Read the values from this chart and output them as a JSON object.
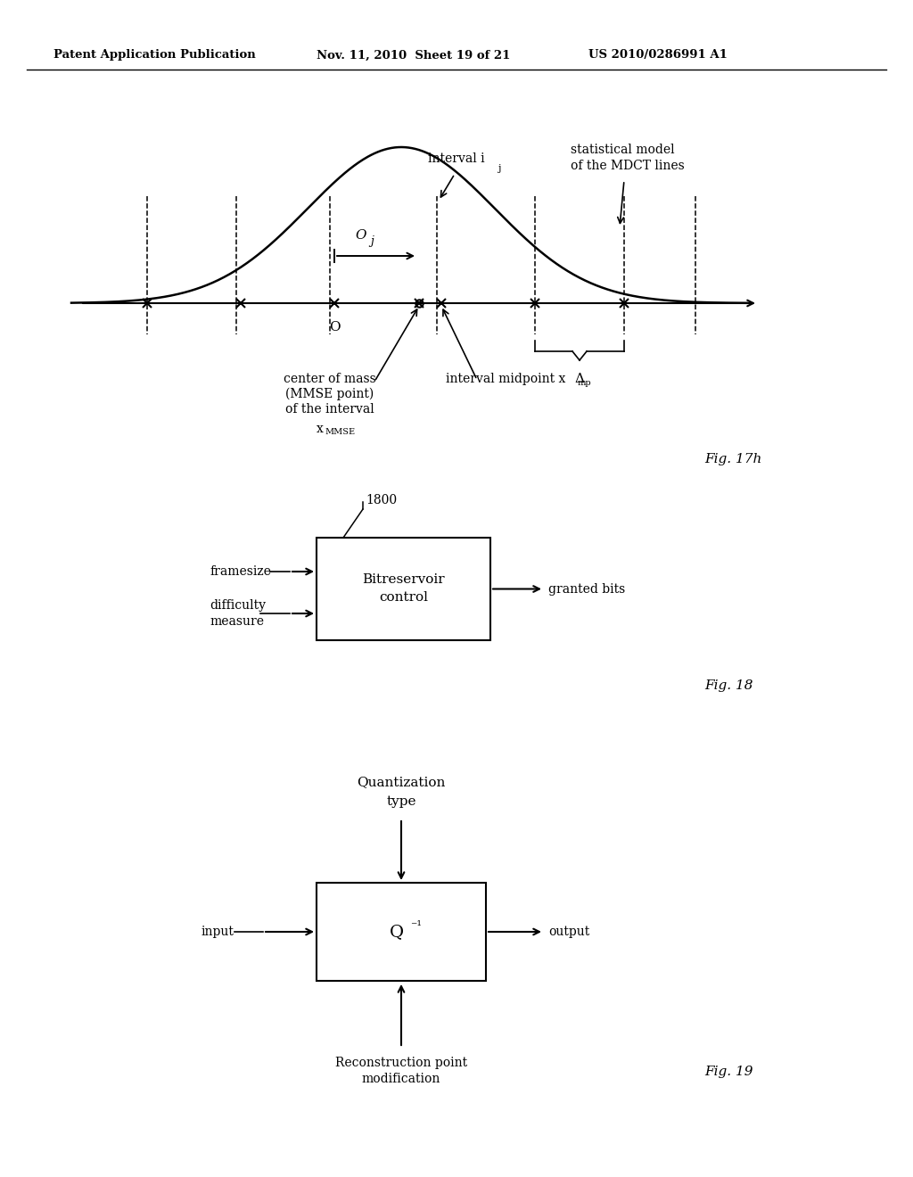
{
  "header_left": "Patent Application Publication",
  "header_mid": "Nov. 11, 2010  Sheet 19 of 21",
  "header_right": "US 2010/0286991 A1",
  "fig17h_label": "Fig. 17h",
  "fig18_label": "Fig. 18",
  "fig19_label": "Fig. 19",
  "bg_color": "#ffffff",
  "font_color": "#000000"
}
